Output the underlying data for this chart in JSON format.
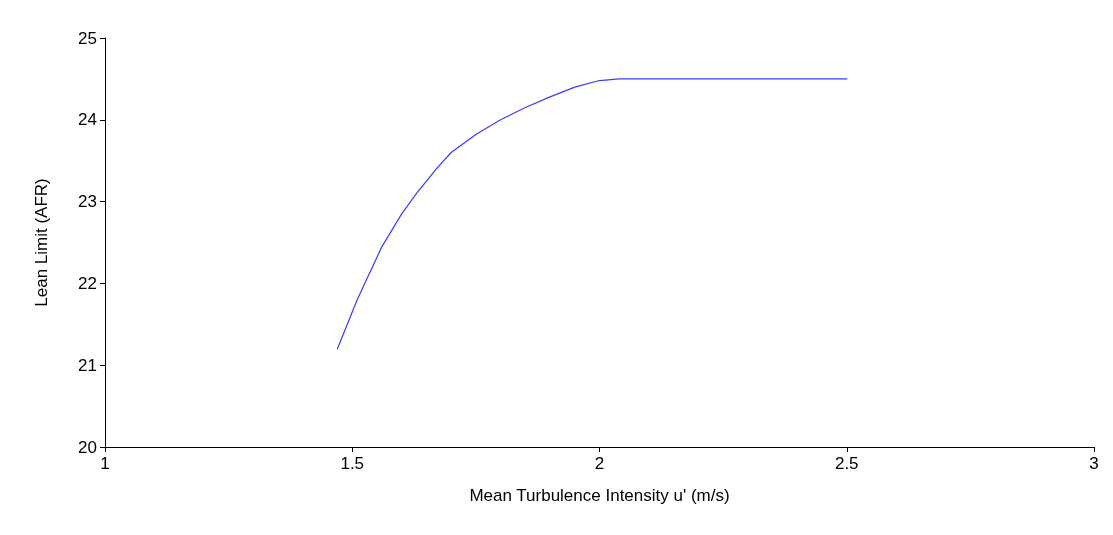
{
  "chart_data": {
    "type": "line",
    "xlabel": "Mean Turbulence Intensity u' (m/s)",
    "ylabel": "Lean Limit (AFR)",
    "series": [
      {
        "color": "#3b3bff",
        "x": [
          1.47,
          1.51,
          1.56,
          1.6,
          1.63,
          1.67,
          1.7,
          1.75,
          1.8,
          1.85,
          1.9,
          1.95,
          2.0,
          2.04,
          2.5
        ],
        "values": [
          21.2,
          21.8,
          22.45,
          22.85,
          23.1,
          23.4,
          23.6,
          23.82,
          24.0,
          24.15,
          24.28,
          24.4,
          24.48,
          24.5,
          24.5
        ]
      }
    ],
    "xlim": [
      1,
      3
    ],
    "xticks": [
      1,
      1.5,
      2,
      2.5,
      3
    ],
    "ylim": [
      20,
      25
    ],
    "yticks": [
      20,
      21,
      22,
      23,
      24,
      25
    ],
    "grid": false,
    "marker": "none",
    "line_style": "solid"
  }
}
